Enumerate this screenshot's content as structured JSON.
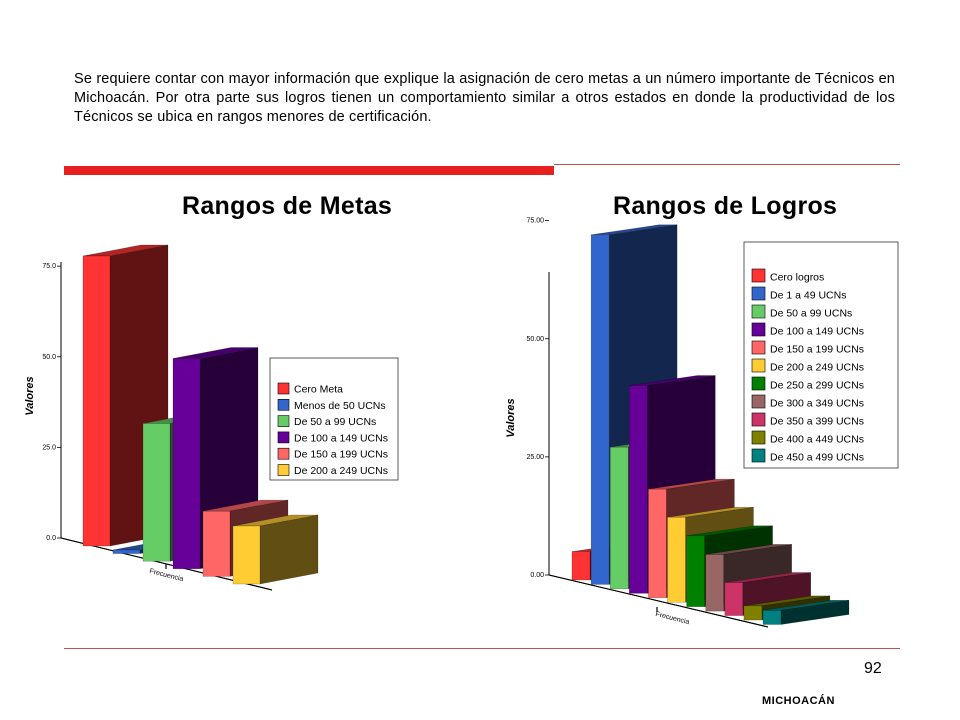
{
  "intro_text": "Se requiere contar con mayor información que explique la asignación de cero metas a un número importante de Técnicos en Michoacán. Por otra parte sus logros tienen un comportamiento similar a otros estados en donde la productividad de los Técnicos se ubica en rangos menores de certificación.",
  "page_number": "92",
  "footer": "MICHOACÁN",
  "chart_data": [
    {
      "type": "bar",
      "title": "Rangos de Metas",
      "ylabel": "Valores",
      "xlabel": "Frecuencia",
      "ylim": [
        0,
        80
      ],
      "yticks": [
        "0.0",
        "25.0",
        "50.0",
        "75.0"
      ],
      "legend_position": "right",
      "series": [
        {
          "name": "Cero Meta",
          "value": 80,
          "color": "#ff3333"
        },
        {
          "name": "Menos de 50 UCNs",
          "value": 1,
          "color": "#3366cc"
        },
        {
          "name": "De 50 a 99 UCNs",
          "value": 38,
          "color": "#66cc66"
        },
        {
          "name": "De 100 a 149 UCNs",
          "value": 58,
          "color": "#660099"
        },
        {
          "name": "De 150 a 199 UCNs",
          "value": 18,
          "color": "#ff6666"
        },
        {
          "name": "De 200 a 249 UCNs",
          "value": 16,
          "color": "#ffcc33"
        }
      ]
    },
    {
      "type": "bar",
      "title": "Rangos de Logros",
      "ylabel": "Valores",
      "xlabel": "Frecuencia",
      "ylim": [
        0,
        80
      ],
      "yticks": [
        "0.00",
        "25.00",
        "50.00",
        "75.00"
      ],
      "legend_position": "top-right",
      "series": [
        {
          "name": "Cero logros",
          "value": 6,
          "color": "#ff3333"
        },
        {
          "name": "De 1 a 49 UCNs",
          "value": 74,
          "color": "#3366cc"
        },
        {
          "name": "De 50 a 99 UCNs",
          "value": 30,
          "color": "#66cc66"
        },
        {
          "name": "De 100 a 149 UCNs",
          "value": 44,
          "color": "#660099"
        },
        {
          "name": "De 150 a 199 UCNs",
          "value": 23,
          "color": "#ff6666"
        },
        {
          "name": "De 200 a 249 UCNs",
          "value": 18,
          "color": "#ffcc33"
        },
        {
          "name": "De 250 a 299 UCNs",
          "value": 15,
          "color": "#008000"
        },
        {
          "name": "De 300 a 349 UCNs",
          "value": 12,
          "color": "#996666"
        },
        {
          "name": "De 350 a 399 UCNs",
          "value": 7,
          "color": "#cc3366"
        },
        {
          "name": "De 400 a 449 UCNs",
          "value": 3,
          "color": "#808000"
        },
        {
          "name": "De 450 a 499 UCNs",
          "value": 3,
          "color": "#008080"
        }
      ]
    }
  ]
}
